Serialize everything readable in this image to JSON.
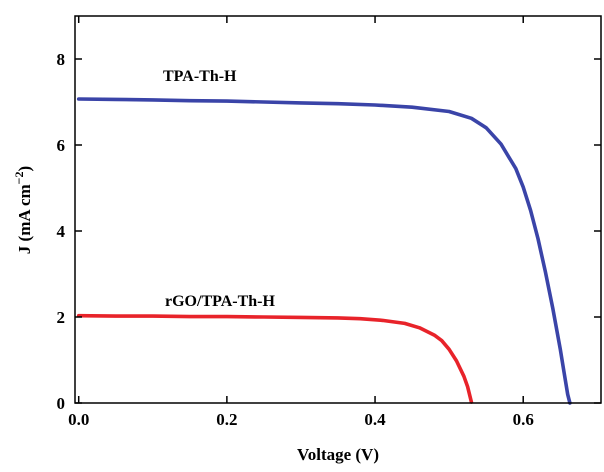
{
  "chart_data": {
    "type": "line",
    "xlabel": "Voltage (V)",
    "ylabel_main": "J (mA cm",
    "ylabel_sup": "−2",
    "ylabel_close": ")",
    "xlim": [
      -0.005,
      0.705
    ],
    "ylim": [
      0,
      9
    ],
    "xticks": [
      0.0,
      0.2,
      0.4,
      0.6
    ],
    "xtick_labels": [
      "0.0",
      "0.2",
      "0.4",
      "0.6"
    ],
    "yticks": [
      0,
      2,
      4,
      6,
      8
    ],
    "ytick_labels": [
      "0",
      "2",
      "4",
      "6",
      "8"
    ],
    "grid": false,
    "series": [
      {
        "name": "TPA-Th-H",
        "color": "#3a44a8",
        "x": [
          0.0,
          0.05,
          0.1,
          0.15,
          0.2,
          0.25,
          0.3,
          0.35,
          0.4,
          0.45,
          0.5,
          0.53,
          0.55,
          0.57,
          0.59,
          0.6,
          0.61,
          0.62,
          0.63,
          0.64,
          0.65,
          0.655,
          0.66,
          0.663
        ],
        "y": [
          7.07,
          7.06,
          7.05,
          7.03,
          7.02,
          7.0,
          6.98,
          6.96,
          6.93,
          6.88,
          6.78,
          6.62,
          6.4,
          6.02,
          5.45,
          5.02,
          4.48,
          3.82,
          3.05,
          2.2,
          1.25,
          0.72,
          0.2,
          0.0
        ]
      },
      {
        "name": "rGO/TPA-Th-H",
        "color": "#e8232a",
        "x": [
          0.0,
          0.05,
          0.1,
          0.15,
          0.2,
          0.25,
          0.3,
          0.35,
          0.38,
          0.41,
          0.44,
          0.46,
          0.48,
          0.49,
          0.5,
          0.51,
          0.52,
          0.525,
          0.53
        ],
        "y": [
          2.03,
          2.02,
          2.02,
          2.01,
          2.01,
          2.0,
          1.99,
          1.98,
          1.96,
          1.92,
          1.85,
          1.75,
          1.58,
          1.45,
          1.25,
          0.98,
          0.62,
          0.38,
          0.02
        ]
      }
    ]
  }
}
